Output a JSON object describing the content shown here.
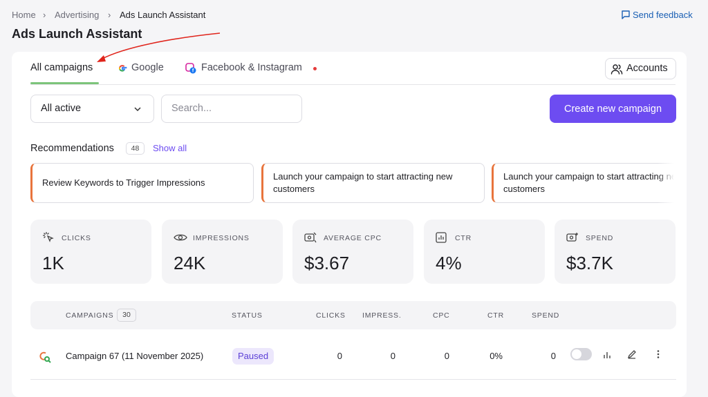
{
  "breadcrumb": [
    "Home",
    "Advertising",
    "Ads Launch Assistant"
  ],
  "feedback": "Send feedback",
  "title": "Ads Launch Assistant",
  "tabs": [
    "All campaigns",
    "Google",
    "Facebook & Instagram"
  ],
  "accounts": "Accounts",
  "filter": "All active",
  "search_placeholder": "Search...",
  "create_button": "Create new campaign",
  "recommendations": {
    "title": "Recommendations",
    "count": 48,
    "show_all": "Show all",
    "items": [
      "Review Keywords to Trigger Impressions",
      "Launch your campaign to start attracting new customers",
      "Launch your campaign to start attracting new customers"
    ]
  },
  "metrics": [
    {
      "label": "CLICKS",
      "value": "1K"
    },
    {
      "label": "IMPRESSIONS",
      "value": "24K"
    },
    {
      "label": "AVERAGE CPC",
      "value": "$3.67"
    },
    {
      "label": "CTR",
      "value": "4%"
    },
    {
      "label": "SPEND",
      "value": "$3.7K"
    }
  ],
  "table": {
    "columns": [
      "CAMPAIGNS",
      "STATUS",
      "CLICKS",
      "IMPRESS.",
      "CPC",
      "CTR",
      "SPEND"
    ],
    "campaign_count": 30,
    "rows": [
      [
        "Campaign 67 (11 November 2025)",
        "Paused",
        "0",
        "0",
        "0",
        "0%",
        "0"
      ]
    ]
  }
}
